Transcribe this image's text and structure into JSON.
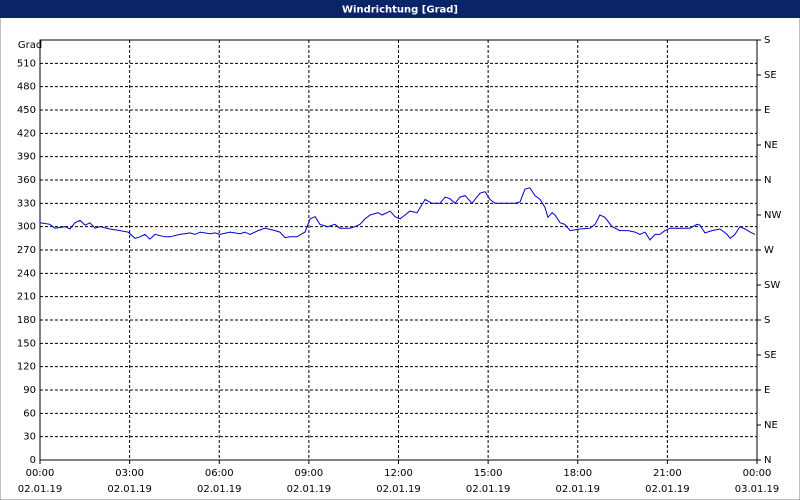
{
  "chart_data": {
    "type": "line",
    "title": "Windrichtung [Grad]",
    "y_label": "Grad",
    "xlim": [
      0,
      24
    ],
    "xticks": [
      {
        "value": 0,
        "label": "00:00"
      },
      {
        "value": 3,
        "label": "03:00"
      },
      {
        "value": 6,
        "label": "06:00"
      },
      {
        "value": 9,
        "label": "09:00"
      },
      {
        "value": 12,
        "label": "12:00"
      },
      {
        "value": 15,
        "label": "15:00"
      },
      {
        "value": 18,
        "label": "18:00"
      },
      {
        "value": 21,
        "label": "21:00"
      },
      {
        "value": 24,
        "label": "00:00"
      }
    ],
    "xtick_dates": [
      "02.01.19",
      "02.01.19",
      "02.01.19",
      "02.01.19",
      "02.01.19",
      "02.01.19",
      "02.01.19",
      "02.01.19",
      "03.01.19"
    ],
    "ylim": [
      0,
      540
    ],
    "yticks": [
      0,
      30,
      60,
      90,
      120,
      150,
      180,
      210,
      240,
      270,
      300,
      330,
      360,
      390,
      420,
      450,
      480,
      510
    ],
    "y2lim": [
      0,
      540
    ],
    "y2ticks": [
      {
        "value": 0,
        "label": "N"
      },
      {
        "value": 45,
        "label": "NE"
      },
      {
        "value": 90,
        "label": "E"
      },
      {
        "value": 135,
        "label": "SE"
      },
      {
        "value": 180,
        "label": "S"
      },
      {
        "value": 225,
        "label": "SW"
      },
      {
        "value": 270,
        "label": "W"
      },
      {
        "value": 315,
        "label": "NW"
      },
      {
        "value": 360,
        "label": "N"
      },
      {
        "value": 405,
        "label": "NE"
      },
      {
        "value": 450,
        "label": "E"
      },
      {
        "value": 495,
        "label": "SE"
      },
      {
        "value": 540,
        "label": "S"
      }
    ],
    "grid": true,
    "series": [
      {
        "color": "#0000cc",
        "x": [
          0,
          0.33,
          0.5,
          0.84,
          1.0,
          1.17,
          1.34,
          1.51,
          1.67,
          1.84,
          2.01,
          2.34,
          2.68,
          2.95,
          3.18,
          3.35,
          3.51,
          3.68,
          3.85,
          4.18,
          4.35,
          4.69,
          5.02,
          5.19,
          5.36,
          5.69,
          5.86,
          6.03,
          6.36,
          6.69,
          6.86,
          7.03,
          7.3,
          7.53,
          7.87,
          8.03,
          8.2,
          8.37,
          8.6,
          8.87,
          9.04,
          9.21,
          9.37,
          9.64,
          9.87,
          10.04,
          10.38,
          10.54,
          10.71,
          10.88,
          11.05,
          11.31,
          11.45,
          11.72,
          11.88,
          12.05,
          12.22,
          12.38,
          12.62,
          12.89,
          13.12,
          13.39,
          13.56,
          13.72,
          13.89,
          14.06,
          14.23,
          14.46,
          14.56,
          14.73,
          14.9,
          15.06,
          15.23,
          15.56,
          15.9,
          16.07,
          16.23,
          16.4,
          16.57,
          16.74,
          16.9,
          17.0,
          17.14,
          17.24,
          17.41,
          17.57,
          17.74,
          18.08,
          18.41,
          18.58,
          18.74,
          18.91,
          19.15,
          19.41,
          19.68,
          19.92,
          20.08,
          20.25,
          20.42,
          20.59,
          20.75,
          20.92,
          21.09,
          21.42,
          21.76,
          21.99,
          22.09,
          22.26,
          22.49,
          22.76,
          23.0,
          23.1,
          23.26,
          23.43,
          23.6,
          23.77,
          23.93
        ],
        "values": [
          305,
          303,
          298,
          300,
          297,
          305,
          308,
          302,
          305,
          298,
          300,
          297,
          295,
          293,
          285,
          287,
          290,
          284,
          290,
          287,
          287,
          290,
          292,
          290,
          293,
          291,
          292,
          290,
          293,
          291,
          293,
          290,
          295,
          298,
          295,
          293,
          286,
          287,
          287,
          293,
          310,
          313,
          303,
          300,
          303,
          298,
          298,
          300,
          303,
          310,
          315,
          318,
          315,
          320,
          313,
          310,
          315,
          320,
          318,
          335,
          330,
          330,
          338,
          336,
          330,
          338,
          340,
          330,
          335,
          343,
          345,
          335,
          330,
          330,
          330,
          332,
          348,
          350,
          340,
          335,
          325,
          312,
          318,
          315,
          305,
          303,
          295,
          297,
          298,
          303,
          315,
          312,
          300,
          295,
          295,
          293,
          290,
          293,
          283,
          290,
          290,
          295,
          298,
          298,
          298,
          303,
          302,
          292,
          295,
          297,
          290,
          285,
          290,
          300,
          297,
          293,
          290
        ]
      }
    ]
  }
}
